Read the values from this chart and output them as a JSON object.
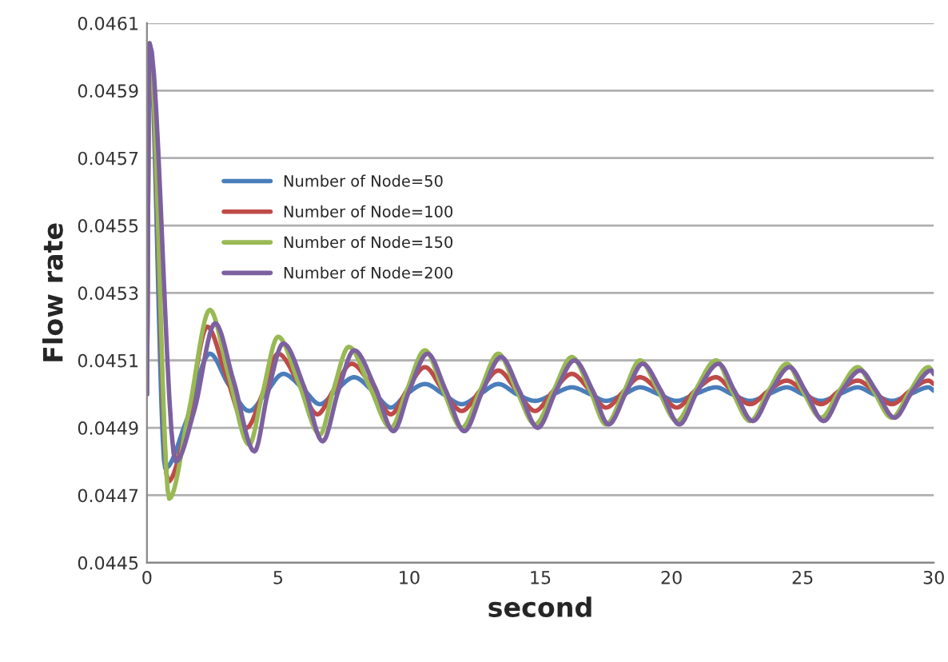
{
  "chart_data": {
    "type": "line",
    "xlabel": "second",
    "ylabel": "Flow rate",
    "xlim": [
      0,
      30
    ],
    "xticks": [
      0,
      5,
      10,
      15,
      20,
      25,
      30
    ],
    "ylim": [
      0.0445,
      0.0461
    ],
    "yticks": [
      0.0445,
      0.0447,
      0.0449,
      0.0451,
      0.0453,
      0.0455,
      0.0457,
      0.0459,
      0.0461
    ],
    "grid": "y",
    "legend": "left",
    "line_style": "solid",
    "marker": "none",
    "series": [
      {
        "name": "Number of Node=50",
        "color": "#4a7ebb",
        "x": [
          0,
          0.1,
          0.7,
          1.5,
          2.4,
          3.1,
          3.9,
          4.5,
          5.2,
          5.9,
          6.6,
          7.2,
          7.9,
          8.6,
          9.3,
          9.9,
          10.6,
          11.3,
          12.0,
          12.7,
          13.4,
          14.1,
          14.8,
          15.5,
          16.2,
          16.9,
          17.5,
          18.2,
          18.8,
          19.5,
          20.2,
          20.9,
          21.7,
          22.3,
          23.0,
          23.7,
          24.4,
          25.0,
          25.7,
          26.4,
          27.1,
          27.7,
          28.4,
          29.1,
          29.8,
          30
        ],
        "values": [
          0.045,
          0.04604,
          0.04478,
          0.04492,
          0.04512,
          0.04503,
          0.04495,
          0.045,
          0.04506,
          0.04502,
          0.04497,
          0.04501,
          0.04505,
          0.04501,
          0.04496,
          0.045,
          0.04503,
          0.045,
          0.04497,
          0.045,
          0.04503,
          0.045,
          0.04498,
          0.045,
          0.04502,
          0.045,
          0.04498,
          0.045,
          0.04502,
          0.045,
          0.04498,
          0.045,
          0.04502,
          0.045,
          0.04498,
          0.045,
          0.04502,
          0.045,
          0.04498,
          0.045,
          0.04502,
          0.045,
          0.04498,
          0.045,
          0.04502,
          0.04501
        ]
      },
      {
        "name": "Number of Node=100",
        "color": "#be4b48",
        "x": [
          0,
          0.1,
          0.8,
          1.5,
          2.3,
          3.0,
          3.8,
          4.4,
          5.0,
          5.8,
          6.5,
          7.1,
          7.8,
          8.6,
          9.3,
          9.9,
          10.6,
          11.3,
          12.0,
          12.7,
          13.4,
          14.1,
          14.8,
          15.5,
          16.2,
          16.9,
          17.5,
          18.2,
          18.8,
          19.5,
          20.2,
          20.9,
          21.7,
          22.3,
          23.0,
          23.7,
          24.4,
          25.0,
          25.7,
          26.4,
          27.1,
          27.7,
          28.4,
          29.1,
          29.8,
          30
        ],
        "values": [
          0.045,
          0.04604,
          0.04474,
          0.0449,
          0.0452,
          0.04506,
          0.0449,
          0.045,
          0.04512,
          0.04503,
          0.04494,
          0.04501,
          0.04509,
          0.04502,
          0.04494,
          0.04501,
          0.04508,
          0.04501,
          0.04495,
          0.04501,
          0.04507,
          0.04501,
          0.04495,
          0.04501,
          0.04506,
          0.04501,
          0.04496,
          0.04501,
          0.04505,
          0.04501,
          0.04496,
          0.04501,
          0.04505,
          0.04501,
          0.04497,
          0.04501,
          0.04504,
          0.04501,
          0.04497,
          0.04501,
          0.04504,
          0.04501,
          0.04497,
          0.04501,
          0.04504,
          0.04503
        ]
      },
      {
        "name": "Number of Node=150",
        "color": "#98b954",
        "x": [
          0,
          0.1,
          0.85,
          1.6,
          2.4,
          3.1,
          3.9,
          4.4,
          5.0,
          5.8,
          6.6,
          7.1,
          7.7,
          8.5,
          9.3,
          9.9,
          10.6,
          11.3,
          12.0,
          12.7,
          13.4,
          14.1,
          14.8,
          15.5,
          16.2,
          16.9,
          17.5,
          18.2,
          18.8,
          19.5,
          20.2,
          20.9,
          21.7,
          22.3,
          23.0,
          23.7,
          24.4,
          25.0,
          25.7,
          26.4,
          27.1,
          27.7,
          28.4,
          29.1,
          29.8,
          30
        ],
        "values": [
          0.045,
          0.04604,
          0.04469,
          0.04495,
          0.04525,
          0.04506,
          0.04485,
          0.045,
          0.04517,
          0.04503,
          0.04488,
          0.04501,
          0.04514,
          0.04502,
          0.0449,
          0.04501,
          0.04513,
          0.04501,
          0.0449,
          0.04501,
          0.04512,
          0.04501,
          0.04491,
          0.04501,
          0.04511,
          0.04501,
          0.04491,
          0.04501,
          0.0451,
          0.04501,
          0.04492,
          0.04501,
          0.0451,
          0.04501,
          0.04492,
          0.04501,
          0.04509,
          0.04501,
          0.04493,
          0.04501,
          0.04508,
          0.04501,
          0.04493,
          0.04501,
          0.04508,
          0.04506
        ]
      },
      {
        "name": "Number of Node=200",
        "color": "#7d60a0",
        "x": [
          0,
          0.1,
          1.1,
          1.8,
          2.6,
          3.3,
          4.1,
          4.6,
          5.2,
          6.0,
          6.7,
          7.3,
          7.9,
          8.7,
          9.4,
          10.0,
          10.7,
          11.4,
          12.1,
          12.8,
          13.5,
          14.2,
          14.9,
          15.6,
          16.3,
          17.0,
          17.6,
          18.3,
          18.9,
          19.6,
          20.3,
          21.0,
          21.8,
          22.4,
          23.1,
          23.8,
          24.5,
          25.1,
          25.8,
          26.5,
          27.2,
          27.8,
          28.5,
          29.2,
          29.9,
          30
        ],
        "values": [
          0.045,
          0.04604,
          0.0448,
          0.04495,
          0.04521,
          0.04504,
          0.04483,
          0.045,
          0.04515,
          0.04502,
          0.04486,
          0.04501,
          0.04513,
          0.04502,
          0.04489,
          0.04501,
          0.04512,
          0.04501,
          0.04489,
          0.04501,
          0.04511,
          0.04501,
          0.0449,
          0.04501,
          0.0451,
          0.04501,
          0.04491,
          0.04501,
          0.04509,
          0.04501,
          0.04491,
          0.04501,
          0.04509,
          0.04501,
          0.04492,
          0.04501,
          0.04508,
          0.04501,
          0.04492,
          0.04501,
          0.04507,
          0.04501,
          0.04493,
          0.04501,
          0.04507,
          0.04506
        ]
      }
    ]
  }
}
